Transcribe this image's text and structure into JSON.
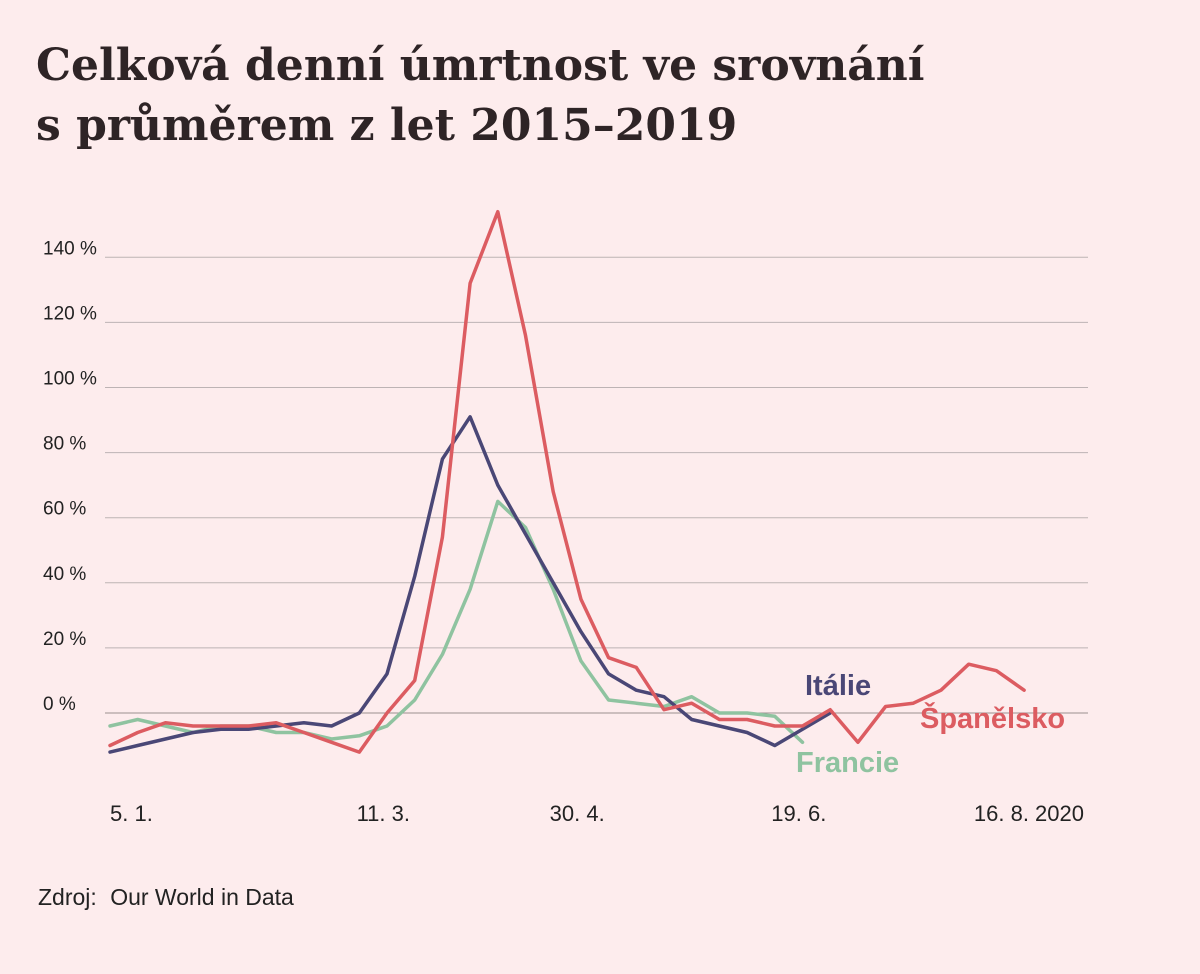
{
  "title_lines": [
    "Celková denní úmrtnost ve srovnání",
    "s průměrem z let 2015–2019"
  ],
  "source": {
    "label": "Zdroj:",
    "text": "Our World in Data"
  },
  "chart_data": {
    "type": "line",
    "title": "Celková denní úmrtnost ve srovnání s průměrem z let 2015–2019",
    "y_ticks": [
      0,
      20,
      40,
      60,
      80,
      100,
      120,
      140
    ],
    "y_tick_labels": [
      "0 %",
      "20 %",
      "40 %",
      "60 %",
      "80 %",
      "100 %",
      "120 %",
      "140 %"
    ],
    "ylim": [
      -25,
      150
    ],
    "x_tick_labels": [
      "5. 1.",
      "11. 3.",
      "30. 4.",
      "19. 6.",
      "16. 8. 2020"
    ],
    "x_tick_weeks": [
      0,
      9,
      16,
      24,
      32
    ],
    "xlim_weeks": [
      0,
      35
    ],
    "grid": true,
    "legend": "inline labels at line ends",
    "series": [
      {
        "name": "Francie",
        "color": "#8fc3a0",
        "values": [
          -4,
          -2,
          -4,
          -6,
          -4,
          -4,
          -6,
          -6,
          -8,
          -7,
          -4,
          4,
          18,
          38,
          65,
          57,
          38,
          16,
          4,
          3,
          2,
          5,
          0,
          0,
          -1,
          -9
        ]
      },
      {
        "name": "Itálie",
        "color": "#4a4776",
        "values": [
          -12,
          -10,
          -8,
          -6,
          -5,
          -5,
          -4,
          -3,
          -4,
          0,
          12,
          42,
          78,
          91,
          70,
          55,
          40,
          25,
          12,
          7,
          5,
          -2,
          -4,
          -6,
          -10,
          -5,
          0
        ]
      },
      {
        "name": "Španělsko",
        "color": "#dc5c61",
        "values": [
          -10,
          -6,
          -3,
          -4,
          -4,
          -4,
          -3,
          -6,
          -9,
          -12,
          0,
          10,
          54,
          132,
          154,
          116,
          68,
          35,
          17,
          14,
          1,
          3,
          -2,
          -2,
          -4,
          -4,
          1,
          -9,
          2,
          3,
          7,
          15,
          13,
          7
        ]
      }
    ]
  }
}
